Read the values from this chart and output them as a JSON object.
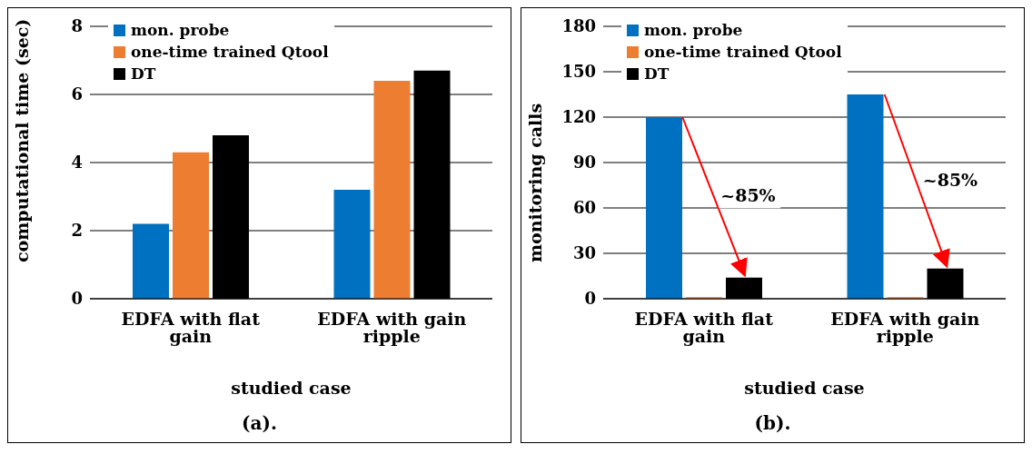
{
  "chart_data": [
    {
      "type": "bar",
      "title": "(a).",
      "xlabel": "studied case",
      "ylabel": "computational time (sec)",
      "categories": [
        "EDFA with flat gain",
        "EDFA with gain ripple"
      ],
      "series": [
        {
          "name": "mon. probe",
          "color": "#0070c0",
          "values": [
            2.2,
            3.2
          ]
        },
        {
          "name": "one-time trained Qtool",
          "color": "#ed7d31",
          "values": [
            4.3,
            6.4
          ]
        },
        {
          "name": "DT",
          "color": "#000000",
          "values": [
            4.8,
            6.7
          ]
        }
      ],
      "ylim": [
        0,
        8
      ],
      "yticks": [
        0,
        2,
        4,
        6,
        8
      ],
      "grid": "y",
      "legend": "top left"
    },
    {
      "type": "bar",
      "title": "(b).",
      "xlabel": "studied case",
      "ylabel": "monitoring calls",
      "categories": [
        "EDFA with flat gain",
        "EDFA with gain ripple"
      ],
      "series": [
        {
          "name": "mon. probe",
          "color": "#0070c0",
          "values": [
            120,
            135
          ]
        },
        {
          "name": "one-time trained Qtool",
          "color": "#ed7d31",
          "values": [
            1,
            1
          ]
        },
        {
          "name": "DT",
          "color": "#000000",
          "values": [
            14,
            20
          ]
        }
      ],
      "ylim": [
        0,
        180
      ],
      "yticks": [
        0,
        30,
        60,
        90,
        120,
        150,
        180
      ],
      "grid": "y",
      "legend": "top left",
      "annotations": [
        "~85%",
        "~85%"
      ]
    }
  ]
}
